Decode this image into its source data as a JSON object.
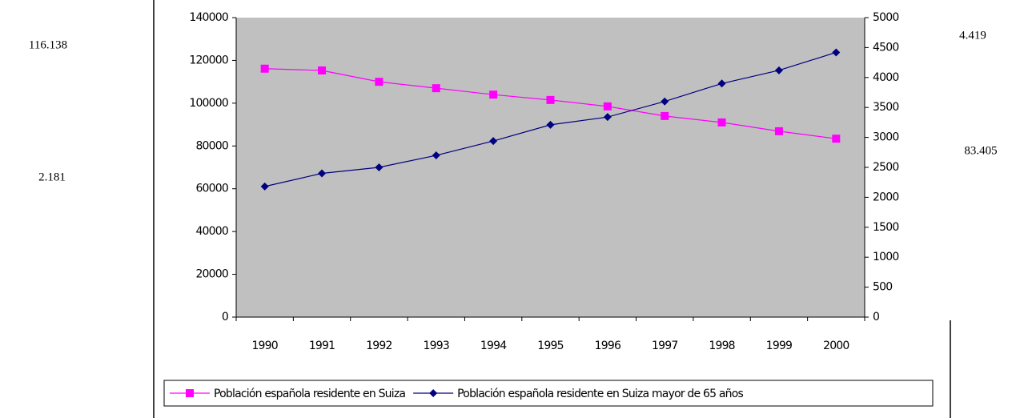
{
  "chart_data": {
    "type": "line",
    "categories": [
      "1990",
      "1991",
      "1992",
      "1993",
      "1994",
      "1995",
      "1996",
      "1997",
      "1998",
      "1999",
      "2000"
    ],
    "series": [
      {
        "name": "Población española residente en Suiza",
        "color": "#ff00ff",
        "marker": "square",
        "values": [
          116138,
          115300,
          110000,
          107000,
          104000,
          101500,
          98500,
          94000,
          91000,
          86900,
          83405
        ]
      },
      {
        "name": "Población española residente en Suiza mayor de 65 años",
        "color": "#000080",
        "marker": "diamond",
        "axis": "y2",
        "values": [
          2181,
          2400,
          2500,
          2700,
          2940,
          3210,
          3340,
          3600,
          3900,
          4120,
          4419
        ]
      }
    ],
    "ylim": [
      0,
      140000
    ],
    "yticks": [
      0,
      20000,
      40000,
      60000,
      80000,
      100000,
      120000,
      140000
    ],
    "y2lim": [
      0,
      5000
    ],
    "y2ticks": [
      0,
      500,
      1000,
      1500,
      2000,
      2500,
      3000,
      3500,
      4000,
      4500,
      5000
    ],
    "plot_background": "#c0c0c0",
    "annotations": [
      "116.138",
      "2.181",
      "4.419",
      "83.405"
    ]
  }
}
